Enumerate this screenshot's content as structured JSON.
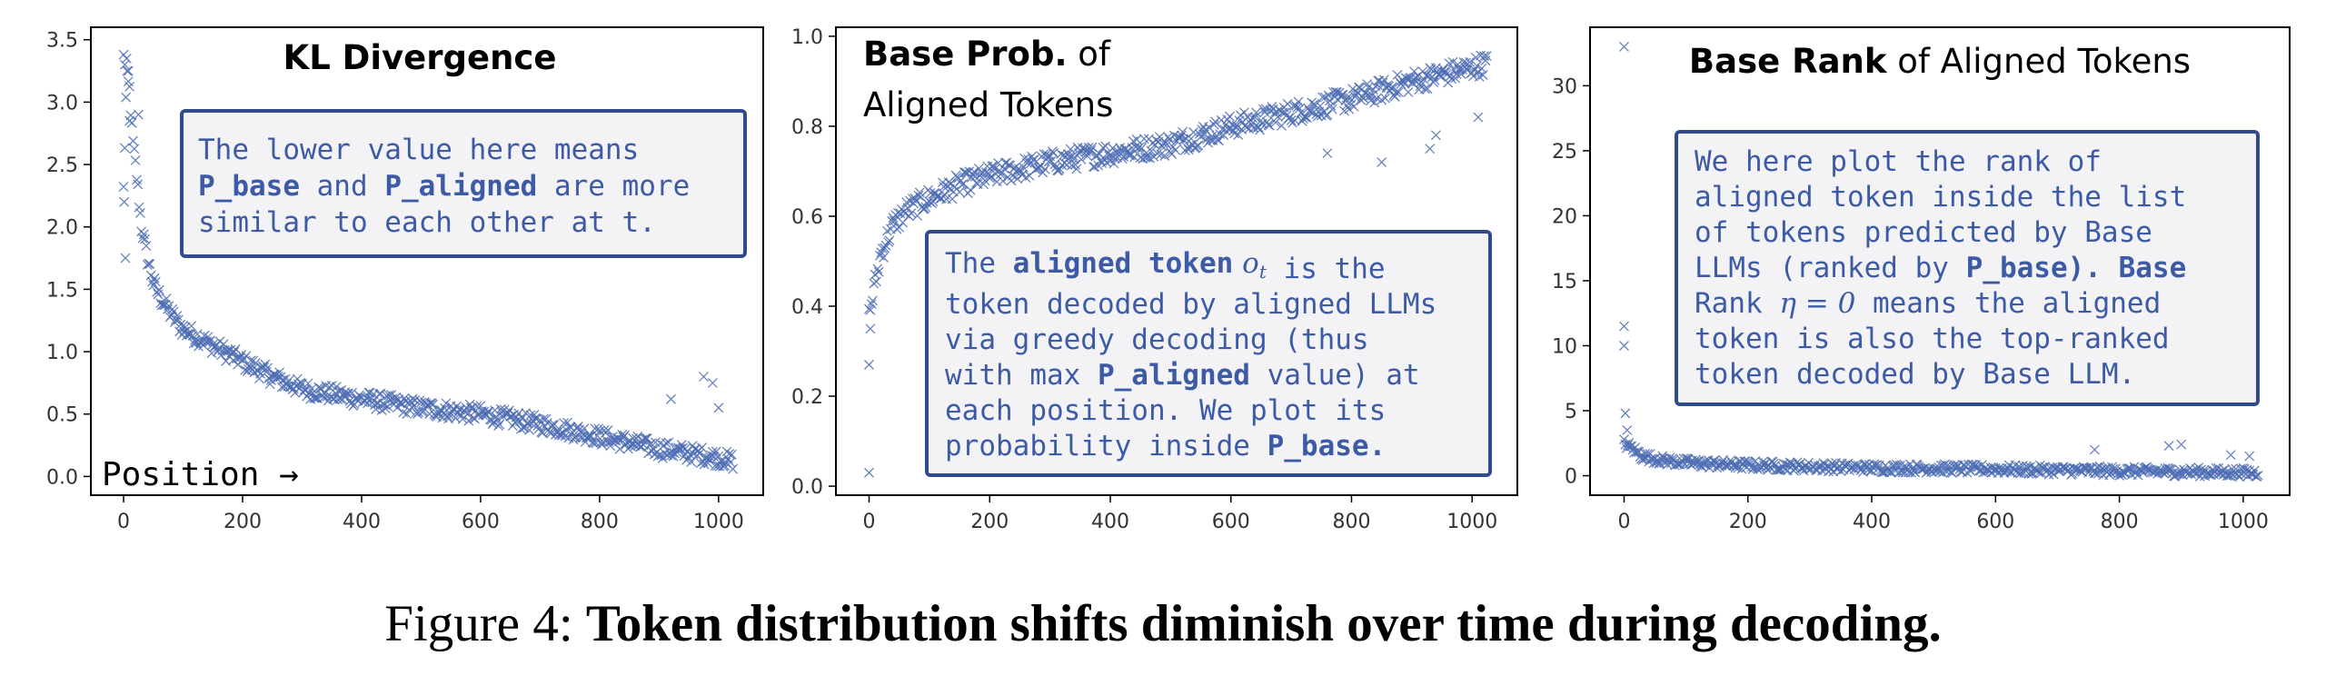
{
  "colors": {
    "marker": "#4c6cb3",
    "annotation_text": "#3d5aa6",
    "annotation_border": "#2f4b8e"
  },
  "chart_data": [
    {
      "type": "scatter",
      "title_bold": "KL Divergence",
      "title_rest": "",
      "marker": "x",
      "xlim": [
        -55,
        1075
      ],
      "ylim": [
        -0.15,
        3.6
      ],
      "xticks": [
        0,
        200,
        400,
        600,
        800,
        1000
      ],
      "yticks": [
        0.0,
        0.5,
        1.0,
        1.5,
        2.0,
        2.5,
        3.0,
        3.5
      ],
      "xtick_labels": [
        "0",
        "200",
        "400",
        "600",
        "800",
        "1000"
      ],
      "ytick_labels": [
        "0.0",
        "0.5",
        "1.0",
        "1.5",
        "2.0",
        "2.5",
        "3.0",
        "3.5"
      ],
      "x_label": "Position →",
      "grid": false,
      "trend_points": [
        [
          0,
          2.3
        ],
        [
          5,
          3.2
        ],
        [
          10,
          3.1
        ],
        [
          15,
          2.7
        ],
        [
          20,
          2.5
        ],
        [
          30,
          2.0
        ],
        [
          40,
          1.75
        ],
        [
          50,
          1.55
        ],
        [
          60,
          1.45
        ],
        [
          80,
          1.3
        ],
        [
          100,
          1.18
        ],
        [
          150,
          1.05
        ],
        [
          200,
          0.92
        ],
        [
          250,
          0.8
        ],
        [
          300,
          0.7
        ],
        [
          400,
          0.62
        ],
        [
          500,
          0.55
        ],
        [
          600,
          0.5
        ],
        [
          700,
          0.42
        ],
        [
          800,
          0.32
        ],
        [
          900,
          0.22
        ],
        [
          1000,
          0.15
        ],
        [
          1024,
          0.12
        ]
      ],
      "spread": 0.07,
      "outliers": [
        [
          0,
          3.38
        ],
        [
          2,
          3.3
        ],
        [
          5,
          3.35
        ],
        [
          8,
          3.25
        ],
        [
          1,
          2.2
        ],
        [
          3,
          1.75
        ],
        [
          10,
          2.85
        ],
        [
          25,
          2.9
        ],
        [
          975,
          0.8
        ],
        [
          990,
          0.75
        ],
        [
          1000,
          0.55
        ],
        [
          920,
          0.62
        ]
      ],
      "annotation": {
        "lines": [
          [
            {
              "t": "The lower value here means",
              "s": ""
            }
          ],
          [
            {
              "t": "P_base",
              "s": "b"
            },
            {
              "t": " and ",
              "s": ""
            },
            {
              "t": "P_aligned",
              "s": "b"
            },
            {
              "t": " are more",
              "s": ""
            }
          ],
          [
            {
              "t": "similar to each other at t.",
              "s": ""
            }
          ]
        ]
      }
    },
    {
      "type": "scatter",
      "title_bold": "Base Prob.",
      "title_rest": "of",
      "title_line2": "Aligned Tokens",
      "marker": "x",
      "xlim": [
        -55,
        1075
      ],
      "ylim": [
        -0.02,
        1.02
      ],
      "xticks": [
        0,
        200,
        400,
        600,
        800,
        1000
      ],
      "yticks": [
        0.0,
        0.2,
        0.4,
        0.6,
        0.8,
        1.0
      ],
      "xtick_labels": [
        "0",
        "200",
        "400",
        "600",
        "800",
        "1000"
      ],
      "ytick_labels": [
        "0.0",
        "0.2",
        "0.4",
        "0.6",
        "0.8",
        "1.0"
      ],
      "grid": false,
      "trend_points": [
        [
          0,
          0.38
        ],
        [
          10,
          0.45
        ],
        [
          20,
          0.52
        ],
        [
          40,
          0.58
        ],
        [
          60,
          0.61
        ],
        [
          100,
          0.64
        ],
        [
          150,
          0.67
        ],
        [
          200,
          0.69
        ],
        [
          300,
          0.72
        ],
        [
          400,
          0.74
        ],
        [
          500,
          0.76
        ],
        [
          600,
          0.8
        ],
        [
          700,
          0.83
        ],
        [
          800,
          0.86
        ],
        [
          900,
          0.9
        ],
        [
          1000,
          0.93
        ],
        [
          1024,
          0.94
        ]
      ],
      "spread": 0.025,
      "outliers": [
        [
          0,
          0.03
        ],
        [
          0,
          0.27
        ],
        [
          2,
          0.35
        ],
        [
          930,
          0.75
        ],
        [
          940,
          0.78
        ],
        [
          1010,
          0.82
        ],
        [
          850,
          0.72
        ],
        [
          760,
          0.74
        ]
      ],
      "annotation": {
        "lines": [
          [
            {
              "t": "The ",
              "s": ""
            },
            {
              "t": "aligned token",
              "s": "b"
            },
            {
              "t": " o",
              "s": "m"
            },
            {
              "t": "t",
              "s": "msub"
            },
            {
              "t": " is the",
              "s": ""
            }
          ],
          [
            {
              "t": "token decoded by aligned LLMs",
              "s": ""
            }
          ],
          [
            {
              "t": "via greedy decoding (thus",
              "s": ""
            }
          ],
          [
            {
              "t": "with max ",
              "s": ""
            },
            {
              "t": "P_aligned",
              "s": "b"
            },
            {
              "t": " value) at",
              "s": ""
            }
          ],
          [
            {
              "t": "each position. We plot its",
              "s": ""
            }
          ],
          [
            {
              "t": "probability inside ",
              "s": ""
            },
            {
              "t": "P_base.",
              "s": "b"
            }
          ]
        ]
      }
    },
    {
      "type": "scatter",
      "title_bold": "Base Rank",
      "title_rest": " of Aligned Tokens",
      "marker": "x",
      "xlim": [
        -55,
        1075
      ],
      "ylim": [
        -1.5,
        34.5
      ],
      "xticks": [
        0,
        200,
        400,
        600,
        800,
        1000
      ],
      "yticks": [
        0,
        5,
        10,
        15,
        20,
        25,
        30
      ],
      "xtick_labels": [
        "0",
        "200",
        "400",
        "600",
        "800",
        "1000"
      ],
      "ytick_labels": [
        "0",
        "5",
        "10",
        "15",
        "20",
        "25",
        "30"
      ],
      "grid": false,
      "trend_points": [
        [
          0,
          2.5
        ],
        [
          10,
          2.2
        ],
        [
          30,
          1.5
        ],
        [
          60,
          1.2
        ],
        [
          100,
          1.0
        ],
        [
          200,
          0.8
        ],
        [
          400,
          0.6
        ],
        [
          600,
          0.5
        ],
        [
          800,
          0.35
        ],
        [
          1000,
          0.25
        ],
        [
          1024,
          0.2
        ]
      ],
      "spread": 0.35,
      "outliers": [
        [
          0,
          33.0
        ],
        [
          0,
          11.5
        ],
        [
          0,
          10.0
        ],
        [
          2,
          4.8
        ],
        [
          5,
          3.5
        ],
        [
          880,
          2.3
        ],
        [
          900,
          2.4
        ],
        [
          760,
          2.0
        ],
        [
          980,
          1.6
        ],
        [
          1010,
          1.5
        ]
      ],
      "annotation": {
        "lines": [
          [
            {
              "t": "We here plot the rank of",
              "s": ""
            }
          ],
          [
            {
              "t": "aligned token inside the list",
              "s": ""
            }
          ],
          [
            {
              "t": "of tokens predicted by Base",
              "s": ""
            }
          ],
          [
            {
              "t": "LLMs (ranked by ",
              "s": ""
            },
            {
              "t": "P_base",
              "s": "b"
            },
            {
              "t": "). Base",
              "s": "b"
            }
          ],
          [
            {
              "t": "Rank ",
              "s": ""
            },
            {
              "t": "η = 0",
              "s": "m"
            },
            {
              "t": "  means the aligned",
              "s": ""
            }
          ],
          [
            {
              "t": "token is also the top-ranked",
              "s": ""
            }
          ],
          [
            {
              "t": "token decoded by Base LLM.",
              "s": ""
            }
          ]
        ]
      }
    }
  ],
  "caption": {
    "prefix": "Figure 4: ",
    "bold": "Token distribution shifts diminish over time during decoding."
  }
}
